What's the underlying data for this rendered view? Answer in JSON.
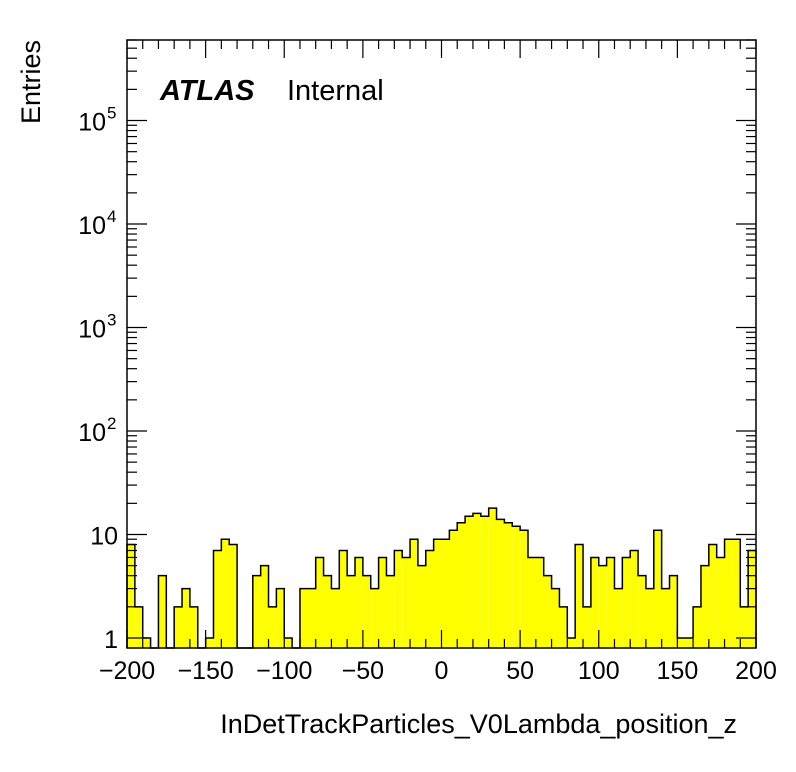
{
  "chart_data": {
    "type": "bar",
    "subtype": "histogram",
    "xlabel": "InDetTrackParticles_V0Lambda_position_z",
    "ylabel": "Entries",
    "xlim": [
      -200,
      200
    ],
    "ylim": [
      0.8,
      600000
    ],
    "yscale": "log",
    "bin_width": 5,
    "fill_color": "#ffff00",
    "x_ticks": [
      -200,
      -150,
      -100,
      -50,
      0,
      50,
      100,
      150,
      200
    ],
    "x_tick_labels": [
      "−200",
      "−150",
      "−100",
      "−50",
      "0",
      "50",
      "100",
      "150",
      "200"
    ],
    "y_ticks": [
      {
        "value": 1,
        "base": "1",
        "exp": ""
      },
      {
        "value": 10,
        "base": "10",
        "exp": ""
      },
      {
        "value": 100,
        "base": "10",
        "exp": "2"
      },
      {
        "value": 1000,
        "base": "10",
        "exp": "3"
      },
      {
        "value": 10000,
        "base": "10",
        "exp": "4"
      },
      {
        "value": 100000,
        "base": "10",
        "exp": "5"
      }
    ],
    "bins_lo": [
      -200,
      -195,
      -190,
      -185,
      -180,
      -175,
      -170,
      -165,
      -160,
      -155,
      -150,
      -145,
      -140,
      -135,
      -130,
      -125,
      -120,
      -115,
      -110,
      -105,
      -100,
      -95,
      -90,
      -85,
      -80,
      -75,
      -70,
      -65,
      -60,
      -55,
      -50,
      -45,
      -40,
      -35,
      -30,
      -25,
      -20,
      -15,
      -10,
      -5,
      0,
      5,
      10,
      15,
      20,
      25,
      30,
      35,
      40,
      45,
      50,
      55,
      60,
      65,
      70,
      75,
      80,
      85,
      90,
      95,
      100,
      105,
      110,
      115,
      120,
      125,
      130,
      135,
      140,
      145,
      150,
      155,
      160,
      165,
      170,
      175,
      180,
      185,
      190,
      195
    ],
    "values": [
      8,
      2,
      1,
      0,
      4,
      0,
      2,
      3,
      2,
      0,
      1,
      7,
      9,
      8,
      0,
      0,
      4,
      5,
      2,
      3,
      1,
      0,
      3,
      3,
      6,
      4,
      3,
      7,
      4,
      6,
      4,
      3,
      6,
      4,
      7,
      6,
      9,
      5,
      7,
      9,
      9,
      11,
      13,
      15,
      16,
      15,
      18,
      14,
      13,
      12,
      11,
      6,
      6,
      4,
      3,
      2,
      1,
      8,
      2,
      6,
      5,
      6,
      3,
      6,
      7,
      4,
      3,
      11,
      3,
      4,
      1,
      1,
      2,
      5,
      8,
      6,
      9,
      9,
      2,
      7
    ],
    "atlas_label": "ATLAS",
    "atlas_status": "Internal"
  }
}
